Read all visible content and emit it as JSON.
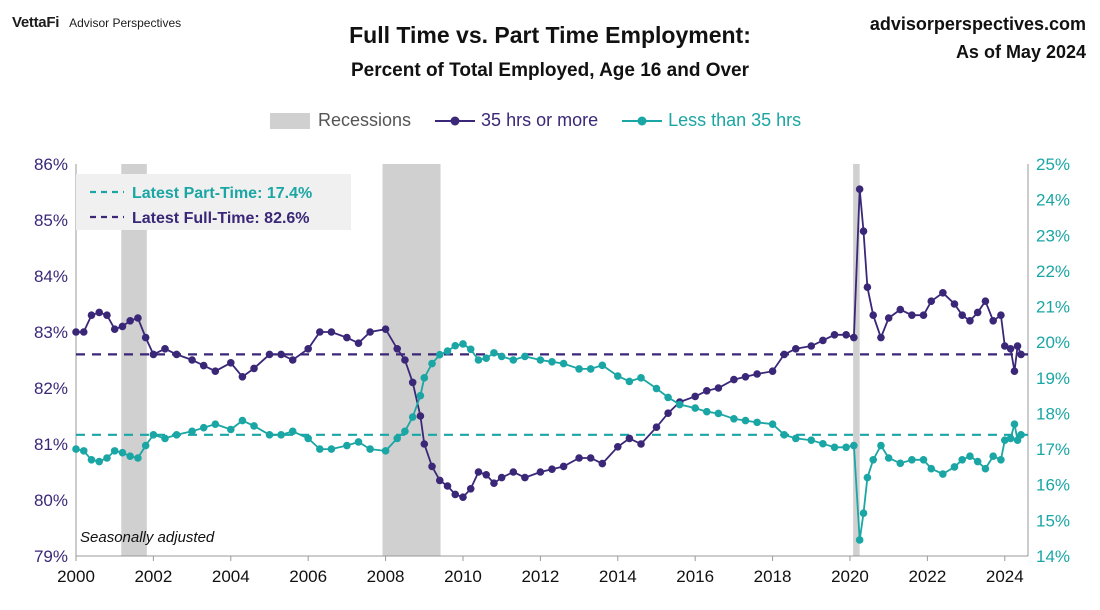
{
  "header": {
    "brand_logo": "VettaFi",
    "brand_sub": "Advisor Perspectives",
    "title": "Full Time vs. Part Time Employment:",
    "subtitle": "Percent of Total Employed, Age 16 and Over",
    "site": "advisorperspectives.com",
    "as_of": "As of May 2024"
  },
  "colors": {
    "full_time": "#3b2778",
    "part_time": "#1aa6a4",
    "recession": "#d0d0d0",
    "info_box": "#f0f0f0"
  },
  "chart_data": {
    "type": "line",
    "title": "Full Time vs. Part Time Employment:",
    "subtitle": "Percent of Total Employed, Age 16 and Over",
    "xlabel": "",
    "ylabel": "",
    "x_range": [
      2000,
      2024.6
    ],
    "x_ticks": [
      "2000",
      "2002",
      "2004",
      "2006",
      "2008",
      "2010",
      "2012",
      "2014",
      "2016",
      "2018",
      "2020",
      "2022",
      "2024"
    ],
    "y_left": {
      "range": [
        79,
        86
      ],
      "ticks": [
        "79%",
        "80%",
        "81%",
        "82%",
        "83%",
        "84%",
        "85%",
        "86%"
      ]
    },
    "y_right": {
      "range": [
        14,
        25
      ],
      "ticks": [
        "14%",
        "15%",
        "16%",
        "17%",
        "18%",
        "19%",
        "20%",
        "21%",
        "22%",
        "23%",
        "24%",
        "25%"
      ]
    },
    "legend": {
      "placement": "top",
      "recessions_label": "Recessions"
    },
    "recessions": [
      [
        2001.17,
        2001.83
      ],
      [
        2007.92,
        2009.42
      ],
      [
        2020.08,
        2020.25
      ]
    ],
    "series": [
      {
        "name": "35 hrs or more",
        "axis": "left",
        "marker": "circle",
        "points": [
          [
            2000.0,
            83.0
          ],
          [
            2000.2,
            83.0
          ],
          [
            2000.4,
            83.3
          ],
          [
            2000.6,
            83.35
          ],
          [
            2000.8,
            83.3
          ],
          [
            2001.0,
            83.05
          ],
          [
            2001.2,
            83.1
          ],
          [
            2001.4,
            83.2
          ],
          [
            2001.6,
            83.25
          ],
          [
            2001.8,
            82.9
          ],
          [
            2002.0,
            82.6
          ],
          [
            2002.3,
            82.7
          ],
          [
            2002.6,
            82.6
          ],
          [
            2003.0,
            82.5
          ],
          [
            2003.3,
            82.4
          ],
          [
            2003.6,
            82.3
          ],
          [
            2004.0,
            82.45
          ],
          [
            2004.3,
            82.2
          ],
          [
            2004.6,
            82.35
          ],
          [
            2005.0,
            82.6
          ],
          [
            2005.3,
            82.6
          ],
          [
            2005.6,
            82.5
          ],
          [
            2006.0,
            82.7
          ],
          [
            2006.3,
            83.0
          ],
          [
            2006.6,
            83.0
          ],
          [
            2007.0,
            82.9
          ],
          [
            2007.3,
            82.8
          ],
          [
            2007.6,
            83.0
          ],
          [
            2008.0,
            83.05
          ],
          [
            2008.3,
            82.7
          ],
          [
            2008.5,
            82.5
          ],
          [
            2008.7,
            82.1
          ],
          [
            2008.9,
            81.5
          ],
          [
            2009.0,
            81.0
          ],
          [
            2009.2,
            80.6
          ],
          [
            2009.4,
            80.35
          ],
          [
            2009.6,
            80.25
          ],
          [
            2009.8,
            80.1
          ],
          [
            2010.0,
            80.05
          ],
          [
            2010.2,
            80.2
          ],
          [
            2010.4,
            80.5
          ],
          [
            2010.6,
            80.45
          ],
          [
            2010.8,
            80.3
          ],
          [
            2011.0,
            80.4
          ],
          [
            2011.3,
            80.5
          ],
          [
            2011.6,
            80.4
          ],
          [
            2012.0,
            80.5
          ],
          [
            2012.3,
            80.55
          ],
          [
            2012.6,
            80.6
          ],
          [
            2013.0,
            80.75
          ],
          [
            2013.3,
            80.75
          ],
          [
            2013.6,
            80.65
          ],
          [
            2014.0,
            80.95
          ],
          [
            2014.3,
            81.1
          ],
          [
            2014.6,
            81.0
          ],
          [
            2015.0,
            81.3
          ],
          [
            2015.3,
            81.55
          ],
          [
            2015.6,
            81.75
          ],
          [
            2016.0,
            81.85
          ],
          [
            2016.3,
            81.95
          ],
          [
            2016.6,
            82.0
          ],
          [
            2017.0,
            82.15
          ],
          [
            2017.3,
            82.2
          ],
          [
            2017.6,
            82.25
          ],
          [
            2018.0,
            82.3
          ],
          [
            2018.3,
            82.6
          ],
          [
            2018.6,
            82.7
          ],
          [
            2019.0,
            82.75
          ],
          [
            2019.3,
            82.85
          ],
          [
            2019.6,
            82.95
          ],
          [
            2019.9,
            82.95
          ],
          [
            2020.1,
            82.9
          ],
          [
            2020.25,
            85.55
          ],
          [
            2020.35,
            84.8
          ],
          [
            2020.45,
            83.8
          ],
          [
            2020.6,
            83.3
          ],
          [
            2020.8,
            82.9
          ],
          [
            2021.0,
            83.25
          ],
          [
            2021.3,
            83.4
          ],
          [
            2021.6,
            83.3
          ],
          [
            2021.9,
            83.3
          ],
          [
            2022.1,
            83.55
          ],
          [
            2022.4,
            83.7
          ],
          [
            2022.7,
            83.5
          ],
          [
            2022.9,
            83.3
          ],
          [
            2023.1,
            83.2
          ],
          [
            2023.3,
            83.35
          ],
          [
            2023.5,
            83.55
          ],
          [
            2023.7,
            83.2
          ],
          [
            2023.9,
            83.3
          ],
          [
            2024.0,
            82.75
          ],
          [
            2024.15,
            82.7
          ],
          [
            2024.25,
            82.3
          ],
          [
            2024.33,
            82.75
          ],
          [
            2024.42,
            82.6
          ]
        ]
      },
      {
        "name": "Less than 35 hrs",
        "axis": "right",
        "marker": "circle",
        "points": [
          [
            2000.0,
            17.0
          ],
          [
            2000.2,
            16.95
          ],
          [
            2000.4,
            16.7
          ],
          [
            2000.6,
            16.65
          ],
          [
            2000.8,
            16.75
          ],
          [
            2001.0,
            16.95
          ],
          [
            2001.2,
            16.9
          ],
          [
            2001.4,
            16.8
          ],
          [
            2001.6,
            16.75
          ],
          [
            2001.8,
            17.1
          ],
          [
            2002.0,
            17.4
          ],
          [
            2002.3,
            17.3
          ],
          [
            2002.6,
            17.4
          ],
          [
            2003.0,
            17.5
          ],
          [
            2003.3,
            17.6
          ],
          [
            2003.6,
            17.7
          ],
          [
            2004.0,
            17.55
          ],
          [
            2004.3,
            17.8
          ],
          [
            2004.6,
            17.65
          ],
          [
            2005.0,
            17.4
          ],
          [
            2005.3,
            17.4
          ],
          [
            2005.6,
            17.5
          ],
          [
            2006.0,
            17.3
          ],
          [
            2006.3,
            17.0
          ],
          [
            2006.6,
            17.0
          ],
          [
            2007.0,
            17.1
          ],
          [
            2007.3,
            17.2
          ],
          [
            2007.6,
            17.0
          ],
          [
            2008.0,
            16.95
          ],
          [
            2008.3,
            17.3
          ],
          [
            2008.5,
            17.5
          ],
          [
            2008.7,
            17.9
          ],
          [
            2008.9,
            18.5
          ],
          [
            2009.0,
            19.0
          ],
          [
            2009.2,
            19.4
          ],
          [
            2009.4,
            19.65
          ],
          [
            2009.6,
            19.75
          ],
          [
            2009.8,
            19.9
          ],
          [
            2010.0,
            19.95
          ],
          [
            2010.2,
            19.8
          ],
          [
            2010.4,
            19.5
          ],
          [
            2010.6,
            19.55
          ],
          [
            2010.8,
            19.7
          ],
          [
            2011.0,
            19.6
          ],
          [
            2011.3,
            19.5
          ],
          [
            2011.6,
            19.6
          ],
          [
            2012.0,
            19.5
          ],
          [
            2012.3,
            19.45
          ],
          [
            2012.6,
            19.4
          ],
          [
            2013.0,
            19.25
          ],
          [
            2013.3,
            19.25
          ],
          [
            2013.6,
            19.35
          ],
          [
            2014.0,
            19.05
          ],
          [
            2014.3,
            18.9
          ],
          [
            2014.6,
            19.0
          ],
          [
            2015.0,
            18.7
          ],
          [
            2015.3,
            18.45
          ],
          [
            2015.6,
            18.25
          ],
          [
            2016.0,
            18.15
          ],
          [
            2016.3,
            18.05
          ],
          [
            2016.6,
            18.0
          ],
          [
            2017.0,
            17.85
          ],
          [
            2017.3,
            17.8
          ],
          [
            2017.6,
            17.75
          ],
          [
            2018.0,
            17.7
          ],
          [
            2018.3,
            17.4
          ],
          [
            2018.6,
            17.3
          ],
          [
            2019.0,
            17.25
          ],
          [
            2019.3,
            17.15
          ],
          [
            2019.6,
            17.05
          ],
          [
            2019.9,
            17.05
          ],
          [
            2020.1,
            17.1
          ],
          [
            2020.25,
            14.45
          ],
          [
            2020.35,
            15.2
          ],
          [
            2020.45,
            16.2
          ],
          [
            2020.6,
            16.7
          ],
          [
            2020.8,
            17.1
          ],
          [
            2021.0,
            16.75
          ],
          [
            2021.3,
            16.6
          ],
          [
            2021.6,
            16.7
          ],
          [
            2021.9,
            16.7
          ],
          [
            2022.1,
            16.45
          ],
          [
            2022.4,
            16.3
          ],
          [
            2022.7,
            16.5
          ],
          [
            2022.9,
            16.7
          ],
          [
            2023.1,
            16.8
          ],
          [
            2023.3,
            16.65
          ],
          [
            2023.5,
            16.45
          ],
          [
            2023.7,
            16.8
          ],
          [
            2023.9,
            16.7
          ],
          [
            2024.0,
            17.25
          ],
          [
            2024.15,
            17.3
          ],
          [
            2024.25,
            17.7
          ],
          [
            2024.33,
            17.25
          ],
          [
            2024.42,
            17.4
          ]
        ]
      }
    ],
    "reference_lines": [
      {
        "label": "Latest Part-Time: 17.4%",
        "axis": "right",
        "value": 17.4
      },
      {
        "label": "Latest Full-Time: 82.6%",
        "axis": "left",
        "value": 82.6
      }
    ],
    "annotation": "Seasonally adjusted"
  }
}
